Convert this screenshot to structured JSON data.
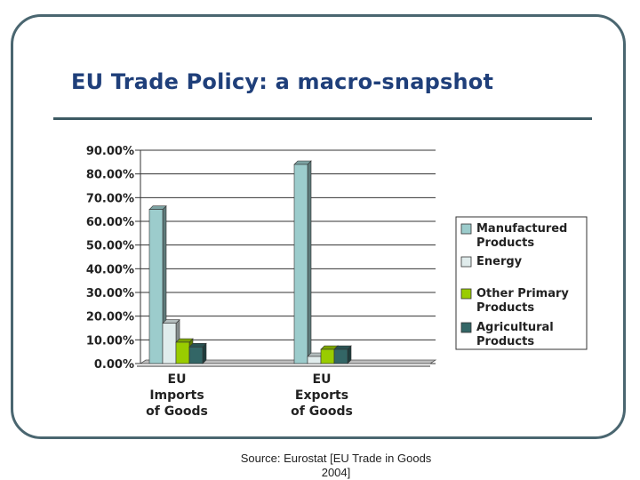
{
  "slide": {
    "title": "EU Trade Policy: a macro-snapshot",
    "source": "Source: Eurostat [EU Trade in Goods 2004]"
  },
  "chart_data": {
    "type": "bar",
    "title": "",
    "xlabel": "",
    "ylabel": "",
    "ylim": [
      0,
      90
    ],
    "y_ticks": [
      "0.00%",
      "10.00%",
      "20.00%",
      "30.00%",
      "40.00%",
      "50.00%",
      "60.00%",
      "70.00%",
      "80.00%",
      "90.00%"
    ],
    "grid": true,
    "legend_position": "right",
    "categories": [
      [
        "EU",
        "Imports",
        "of Goods"
      ],
      [
        "EU",
        "Exports",
        "of Goods"
      ]
    ],
    "series": [
      {
        "name": [
          "Manufactured",
          "Products"
        ],
        "values": [
          65,
          84
        ],
        "color": "#9ccccc"
      },
      {
        "name": [
          "Energy"
        ],
        "values": [
          17,
          3
        ],
        "color": "#e0ecec"
      },
      {
        "name": [
          "Other Primary",
          "Products"
        ],
        "values": [
          9,
          6
        ],
        "color": "#99cc00"
      },
      {
        "name": [
          "Agricultural",
          "Products"
        ],
        "values": [
          7,
          6
        ],
        "color": "#336666"
      }
    ]
  }
}
